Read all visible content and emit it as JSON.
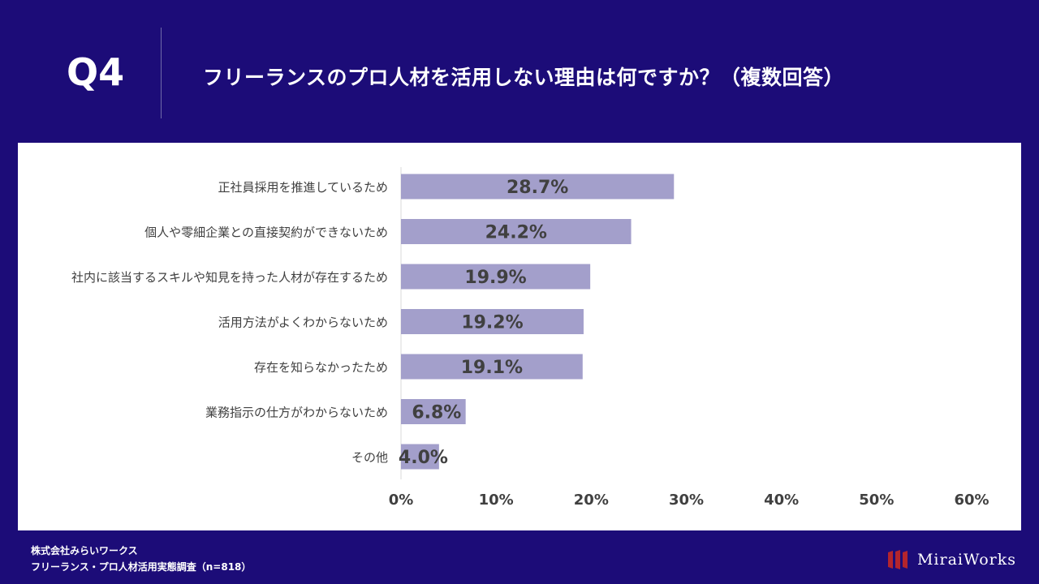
{
  "header": {
    "question_label": "Q4",
    "title": "フリーランスのプロ人材を活用しない理由は何ですか？（複数回答）"
  },
  "chart_data": {
    "type": "bar",
    "orientation": "horizontal",
    "categories": [
      "正社員採用を推進しているため",
      "個人や零細企業との直接契約ができないため",
      "社内に該当するスキルや知見を持った人材が存在するため",
      "活用方法がよくわからないため",
      "存在を知らなかったため",
      "業務指示の仕方がわからないため",
      "その他"
    ],
    "values": [
      28.7,
      24.2,
      19.9,
      19.2,
      19.1,
      6.8,
      4.0
    ],
    "value_labels": [
      "28.7%",
      "24.2%",
      "19.9%",
      "19.2%",
      "19.1%",
      "6.8%",
      "4.0%"
    ],
    "x_ticks": [
      0,
      10,
      20,
      30,
      40,
      50,
      60
    ],
    "x_tick_labels": [
      "0%",
      "10%",
      "20%",
      "30%",
      "40%",
      "50%",
      "60%"
    ],
    "xlim": [
      0,
      60
    ],
    "grid": false,
    "bar_color": "#a39fcb"
  },
  "footer": {
    "company": "株式会社みらいワークス",
    "survey": "フリーランス・プロ人材活用実態調査（n=818）"
  },
  "logo": {
    "text": "MiraiWorks",
    "color": "#b3252d"
  },
  "colors": {
    "background": "#1c0c78",
    "panel": "#ffffff",
    "label_text": "#404040"
  }
}
